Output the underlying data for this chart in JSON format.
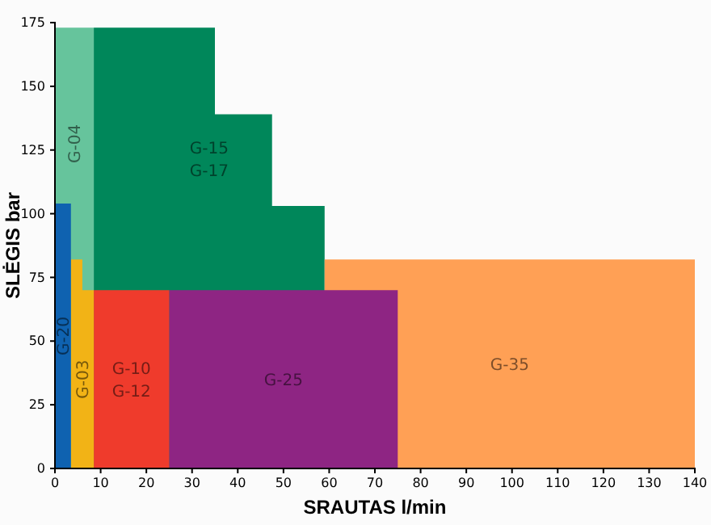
{
  "chart_data": {
    "type": "area",
    "xlabel": "SRAUTAS l/min",
    "ylabel": "SLĖGIS bar",
    "xlim": [
      0,
      140
    ],
    "ylim": [
      0,
      175
    ],
    "xticks": [
      0,
      10,
      20,
      30,
      40,
      50,
      60,
      70,
      80,
      90,
      100,
      110,
      120,
      130,
      140
    ],
    "yticks": [
      0,
      25,
      50,
      75,
      100,
      125,
      150,
      175
    ],
    "grid": false,
    "legend": false,
    "series": [
      {
        "name": "G-04",
        "color": "#66c49c",
        "x": [
          0,
          8.5
        ],
        "values": [
          173,
          173
        ]
      },
      {
        "name": "G-15 G-17",
        "color": "#00875a",
        "x": [
          8.5,
          35,
          35,
          47.5,
          47.5,
          59
        ],
        "values": [
          173,
          173,
          139,
          139,
          103,
          103
        ]
      },
      {
        "name": "G-35",
        "color": "#ffa055",
        "x": [
          59,
          140
        ],
        "values": [
          82,
          82
        ]
      },
      {
        "name": "G-25",
        "color": "#8e2583",
        "x": [
          25,
          75
        ],
        "values": [
          70,
          70
        ]
      },
      {
        "name": "G-10 G-12",
        "color": "#ef3b2c",
        "x": [
          8.5,
          25
        ],
        "values": [
          70,
          70
        ]
      },
      {
        "name": "G-03",
        "color": "#f2b316",
        "x": [
          3.5,
          6,
          6,
          8.5
        ],
        "values": [
          82,
          82,
          70,
          70
        ]
      },
      {
        "name": "G-20",
        "color": "#0f62b0",
        "x": [
          0,
          3.5
        ],
        "values": [
          104,
          104
        ]
      }
    ]
  }
}
